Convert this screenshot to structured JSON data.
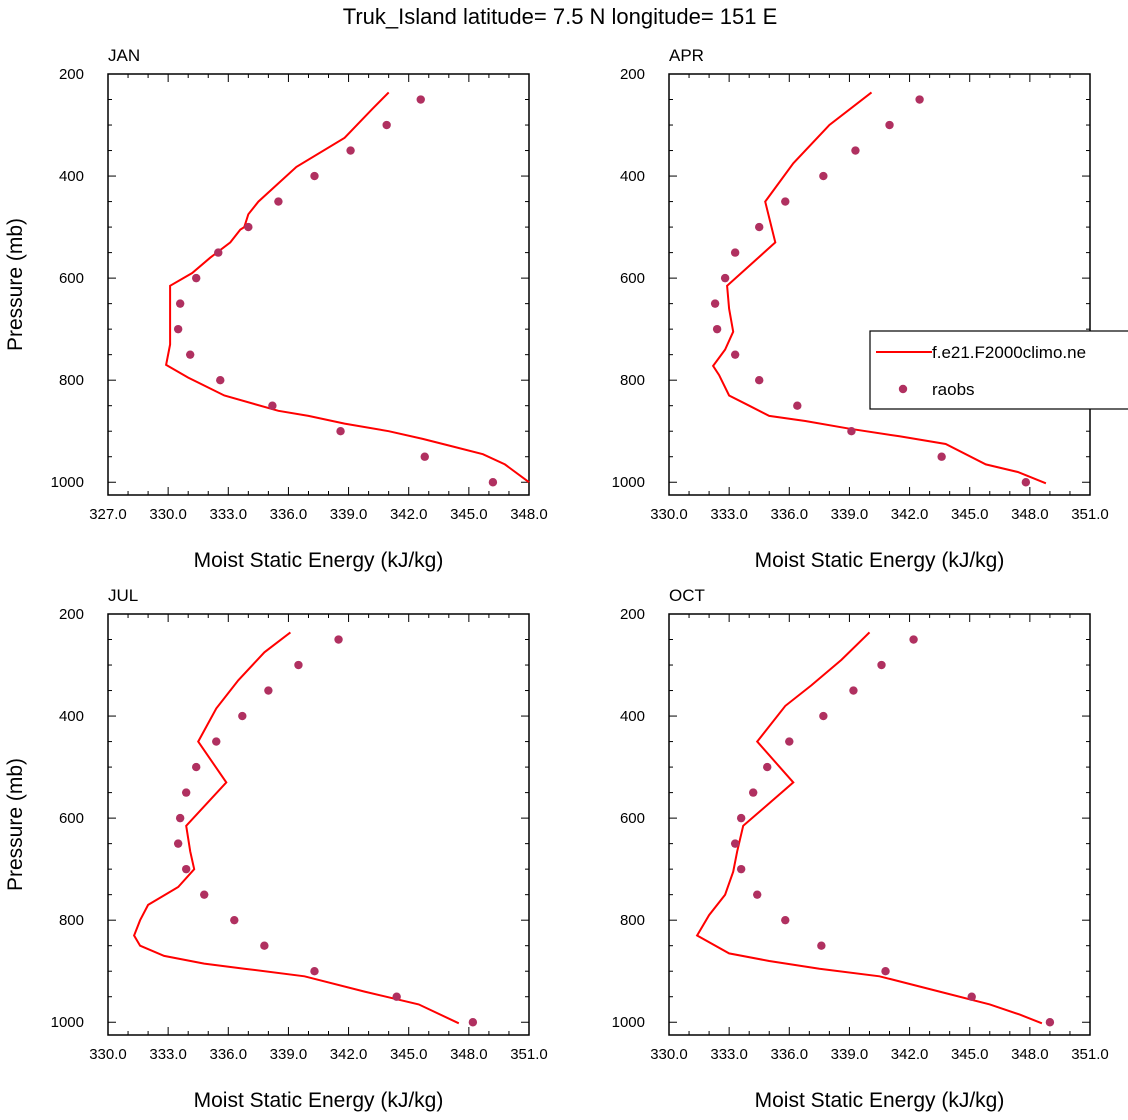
{
  "title": "Truk_Island  latitude= 7.5 N longitude= 151 E",
  "colors": {
    "model": "#ff0000",
    "obs": "#b03060",
    "axis": "#000000"
  },
  "legend": {
    "placement": "right-middle (APR panel)",
    "entries": [
      {
        "label": "f.e21.F2000climo.ne",
        "style": "line",
        "color": "#ff0000"
      },
      {
        "label": "raobs",
        "style": "marker",
        "color": "#b03060"
      }
    ]
  },
  "chart_data": [
    {
      "type": "line",
      "panel_label": "JAN",
      "xlabel": "Moist Static Energy (kJ/kg)",
      "ylabel": "Pressure (mb)",
      "xlim": [
        327,
        348
      ],
      "ylim": [
        1025,
        200
      ],
      "y_inverted": true,
      "xticks": [
        "327.0",
        "330.0",
        "333.0",
        "336.0",
        "339.0",
        "342.0",
        "345.0",
        "348.0"
      ],
      "yticks": [
        "200",
        "400",
        "600",
        "800",
        "1000"
      ],
      "series": [
        {
          "name": "f.e21.F2000climo.ne",
          "type": "line",
          "x": [
            341.0,
            340.2,
            338.8,
            336.4,
            334.5,
            334.0,
            333.8,
            333.6,
            333.1,
            332.1,
            331.2,
            330.1,
            330.1,
            330.1,
            330.1,
            329.9,
            331.0,
            332.8,
            335.5,
            337.0,
            338.8,
            341.0,
            342.7,
            344.2,
            345.7,
            346.8,
            348.0
          ],
          "y": [
            236,
            268,
            325,
            382,
            450,
            475,
            500,
            505,
            530,
            560,
            590,
            615,
            650,
            700,
            730,
            770,
            795,
            830,
            860,
            870,
            885,
            900,
            915,
            930,
            945,
            965,
            1000
          ]
        },
        {
          "name": "raobs",
          "type": "scatter",
          "x": [
            342.6,
            340.9,
            339.1,
            337.3,
            335.5,
            334.0,
            332.5,
            331.4,
            330.6,
            330.5,
            331.1,
            332.6,
            335.2,
            338.6,
            342.8,
            346.2
          ],
          "y": [
            250,
            300,
            350,
            400,
            450,
            500,
            550,
            600,
            650,
            700,
            750,
            800,
            850,
            900,
            950,
            1000
          ]
        }
      ]
    },
    {
      "type": "line",
      "panel_label": "APR",
      "xlabel": "Moist Static Energy (kJ/kg)",
      "ylabel": "",
      "xlim": [
        330,
        351
      ],
      "ylim": [
        1025,
        200
      ],
      "y_inverted": true,
      "xticks": [
        "330.0",
        "333.0",
        "336.0",
        "339.0",
        "342.0",
        "345.0",
        "348.0",
        "351.0"
      ],
      "yticks": [
        "200",
        "400",
        "600",
        "800",
        "1000"
      ],
      "series": [
        {
          "name": "f.e21.F2000climo.ne",
          "type": "line",
          "x": [
            340.1,
            338.0,
            336.2,
            334.8,
            335.3,
            332.9,
            333.0,
            333.2,
            332.8,
            332.2,
            332.5,
            333.0,
            334.0,
            335.0,
            336.8,
            339.0,
            341.5,
            343.8,
            345.8,
            347.4,
            348.8
          ],
          "y": [
            236,
            300,
            375,
            450,
            530,
            615,
            660,
            705,
            740,
            772,
            790,
            830,
            850,
            870,
            880,
            895,
            910,
            925,
            965,
            980,
            1002
          ]
        },
        {
          "name": "raobs",
          "type": "scatter",
          "x": [
            342.5,
            341.0,
            339.3,
            337.7,
            335.8,
            334.5,
            333.3,
            332.8,
            332.3,
            332.4,
            333.3,
            334.5,
            336.4,
            339.1,
            343.6,
            347.8
          ],
          "y": [
            250,
            300,
            350,
            400,
            450,
            500,
            550,
            600,
            650,
            700,
            750,
            800,
            850,
            900,
            950,
            1000
          ]
        }
      ]
    },
    {
      "type": "line",
      "panel_label": "JUL",
      "xlabel": "Moist Static Energy (kJ/kg)",
      "ylabel": "Pressure (mb)",
      "xlim": [
        330,
        351
      ],
      "ylim": [
        1025,
        200
      ],
      "y_inverted": true,
      "xticks": [
        "330.0",
        "333.0",
        "336.0",
        "339.0",
        "342.0",
        "345.0",
        "348.0",
        "351.0"
      ],
      "yticks": [
        "200",
        "400",
        "600",
        "800",
        "1000"
      ],
      "series": [
        {
          "name": "f.e21.F2000climo.ne",
          "type": "line",
          "x": [
            339.1,
            337.8,
            336.5,
            335.4,
            334.5,
            335.9,
            333.9,
            334.1,
            334.3,
            333.5,
            332.0,
            331.6,
            331.3,
            331.6,
            332.8,
            334.8,
            336.8,
            339.8,
            342.8,
            345.5,
            347.5
          ],
          "y": [
            236,
            275,
            330,
            385,
            450,
            530,
            615,
            665,
            700,
            735,
            770,
            800,
            830,
            850,
            870,
            885,
            895,
            910,
            940,
            965,
            1002
          ]
        },
        {
          "name": "raobs",
          "type": "scatter",
          "x": [
            341.5,
            339.5,
            338.0,
            336.7,
            335.4,
            334.4,
            333.9,
            333.6,
            333.5,
            333.9,
            334.8,
            336.3,
            337.8,
            340.3,
            344.4,
            348.2
          ],
          "y": [
            250,
            300,
            350,
            400,
            450,
            500,
            550,
            600,
            650,
            700,
            750,
            800,
            850,
            900,
            950,
            1000
          ]
        }
      ]
    },
    {
      "type": "line",
      "panel_label": "OCT",
      "xlabel": "Moist Static Energy (kJ/kg)",
      "ylabel": "",
      "xlim": [
        330,
        351
      ],
      "ylim": [
        1025,
        200
      ],
      "y_inverted": true,
      "xticks": [
        "330.0",
        "333.0",
        "336.0",
        "339.0",
        "342.0",
        "345.0",
        "348.0",
        "351.0"
      ],
      "yticks": [
        "200",
        "400",
        "600",
        "800",
        "1000"
      ],
      "series": [
        {
          "name": "f.e21.F2000climo.ne",
          "type": "line",
          "x": [
            340.0,
            338.6,
            337.1,
            335.8,
            334.4,
            336.2,
            333.7,
            333.4,
            333.2,
            332.8,
            332.0,
            331.4,
            333.0,
            335.0,
            337.5,
            340.5,
            343.5,
            346.0,
            347.5,
            348.6
          ],
          "y": [
            236,
            290,
            340,
            380,
            450,
            530,
            615,
            665,
            705,
            750,
            790,
            830,
            865,
            880,
            895,
            910,
            940,
            965,
            985,
            1002
          ]
        },
        {
          "name": "raobs",
          "type": "scatter",
          "x": [
            342.2,
            340.6,
            339.2,
            337.7,
            336.0,
            334.9,
            334.2,
            333.6,
            333.3,
            333.6,
            334.4,
            335.8,
            337.6,
            340.8,
            345.1,
            349.0
          ],
          "y": [
            250,
            300,
            350,
            400,
            450,
            500,
            550,
            600,
            650,
            700,
            750,
            800,
            850,
            900,
            950,
            1000
          ]
        }
      ]
    }
  ]
}
